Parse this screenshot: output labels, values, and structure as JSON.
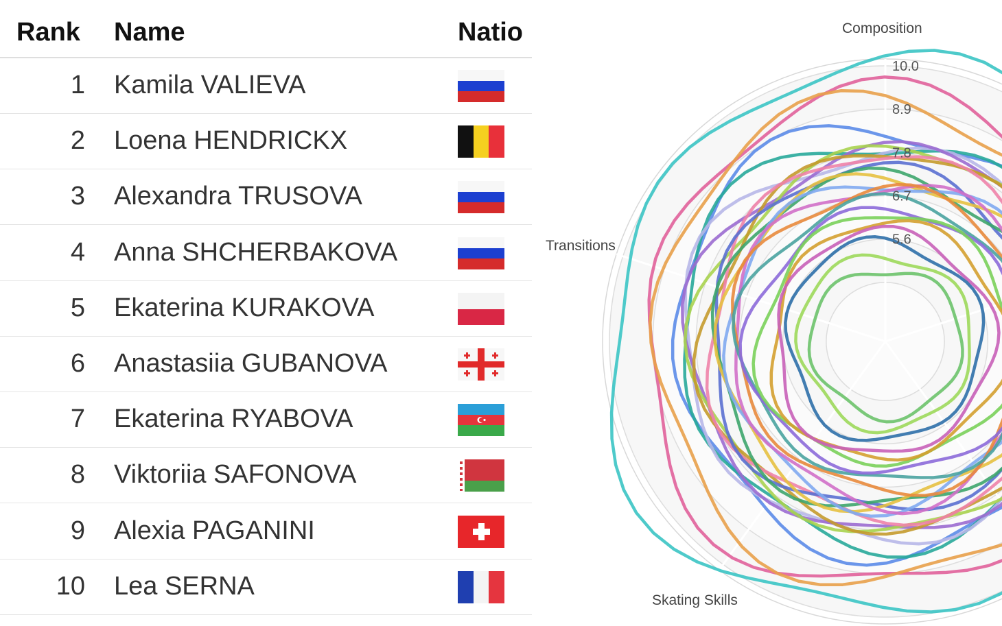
{
  "table": {
    "headers": {
      "rank": "Rank",
      "name": "Name",
      "nation": "Natio"
    },
    "rows": [
      {
        "rank": "1",
        "name": "Kamila VALIEVA",
        "flag": "flag-russia-icon"
      },
      {
        "rank": "2",
        "name": "Loena HENDRICKX",
        "flag": "flag-belgium-icon"
      },
      {
        "rank": "3",
        "name": "Alexandra TRUSOVA",
        "flag": "flag-russia-icon"
      },
      {
        "rank": "4",
        "name": "Anna SHCHERBAKOVA",
        "flag": "flag-russia-icon"
      },
      {
        "rank": "5",
        "name": "Ekaterina KURAKOVA",
        "flag": "flag-poland-icon"
      },
      {
        "rank": "6",
        "name": "Anastasiia GUBANOVA",
        "flag": "flag-georgia-icon"
      },
      {
        "rank": "7",
        "name": "Ekaterina RYABOVA",
        "flag": "flag-azerbaijan-icon"
      },
      {
        "rank": "8",
        "name": "Viktoriia SAFONOVA",
        "flag": "flag-belarus-icon"
      },
      {
        "rank": "9",
        "name": "Alexia PAGANINI",
        "flag": "flag-switzerland-icon"
      },
      {
        "rank": "10",
        "name": "Lea SERNA",
        "flag": "flag-france-icon"
      }
    ]
  },
  "chart_data": {
    "type": "radar",
    "axes": [
      "Composition",
      "Transitions",
      "Skating Skills"
    ],
    "ticks": [
      "10.0",
      "8.9",
      "7.8",
      "6.7",
      "5.6"
    ],
    "grid": true,
    "series_count": 24,
    "series_colors": [
      "#3bc4c4",
      "#e0609a",
      "#e8a04a",
      "#5b8be8",
      "#28a89a",
      "#b7b7e8",
      "#9b6bd0",
      "#a9d34f",
      "#c49a2c",
      "#ee82a8",
      "#5a6fd0",
      "#3da56b",
      "#e5c040",
      "#7fa8f0",
      "#d06fc8",
      "#e88a3c",
      "#4aa3a0",
      "#8c6ad9",
      "#7ad05a",
      "#d4a030",
      "#c861b8",
      "#2e6fa8",
      "#9cd85a",
      "#6cc26a"
    ],
    "series_levels": [
      10.0,
      9.2,
      9.0,
      8.4,
      8.2,
      8.0,
      7.9,
      7.8,
      7.7,
      7.6,
      7.4,
      7.3,
      7.2,
      7.1,
      7.0,
      6.8,
      6.6,
      6.4,
      6.2,
      6.0,
      5.8,
      5.5,
      5.2,
      4.9
    ]
  }
}
